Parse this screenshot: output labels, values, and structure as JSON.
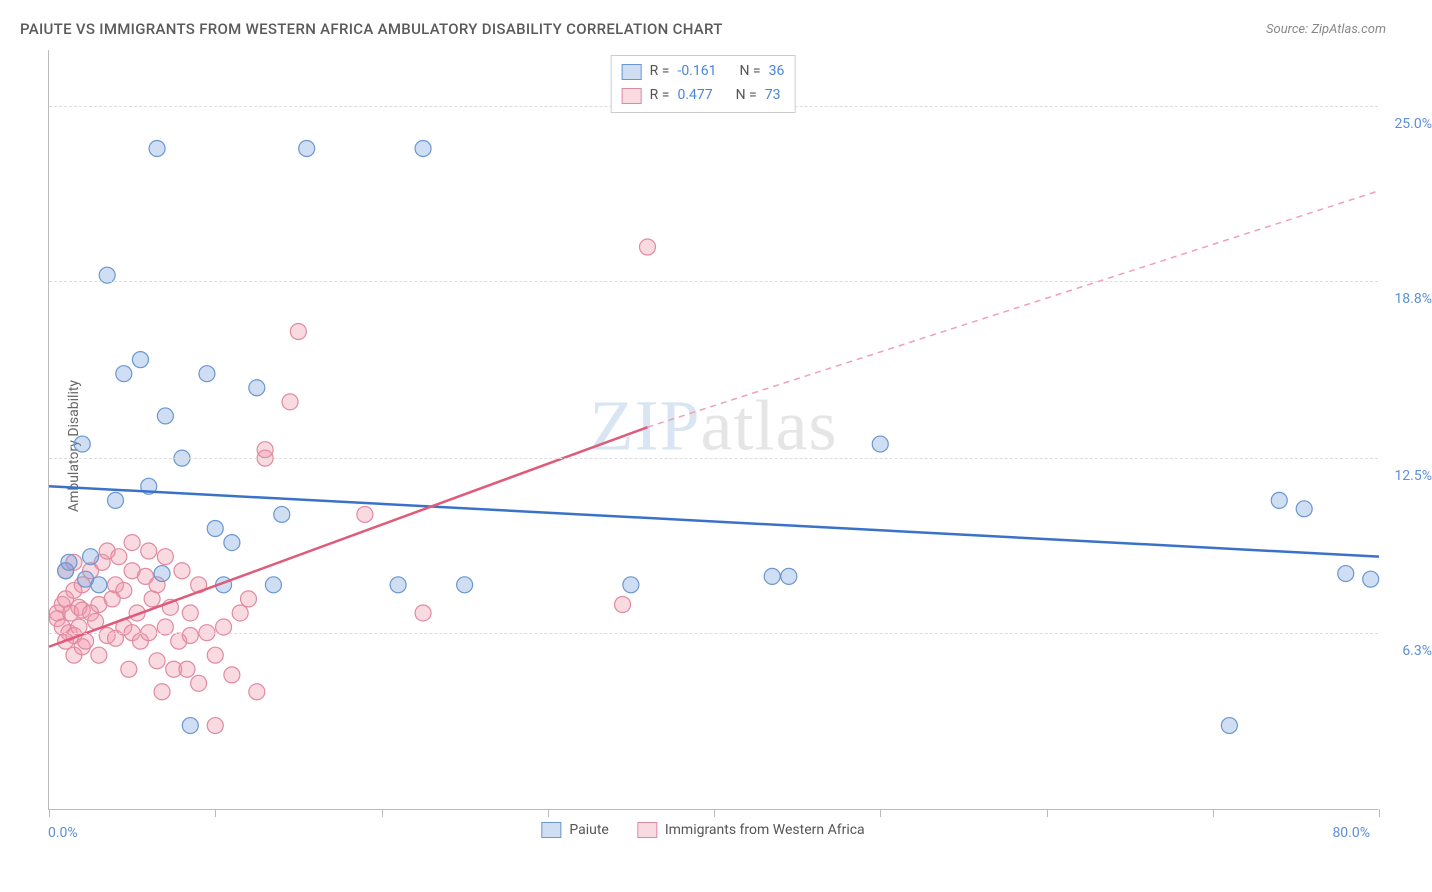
{
  "title": "PAIUTE VS IMMIGRANTS FROM WESTERN AFRICA AMBULATORY DISABILITY CORRELATION CHART",
  "source_prefix": "Source: ",
  "source_name": "ZipAtlas.com",
  "y_axis_label": "Ambulatory Disability",
  "watermark_zip": "ZIP",
  "watermark_atlas": "atlas",
  "chart": {
    "type": "scatter",
    "xlim": [
      0,
      80
    ],
    "ylim": [
      0,
      27
    ],
    "x_ticks": [
      0,
      10,
      20,
      30,
      40,
      50,
      60,
      70,
      80
    ],
    "x_tick_min_label": "0.0%",
    "x_tick_max_label": "80.0%",
    "y_gridlines": [
      6.3,
      12.5,
      18.8,
      25.0
    ],
    "y_tick_labels": [
      "6.3%",
      "12.5%",
      "18.8%",
      "25.0%"
    ],
    "background_color": "#ffffff",
    "grid_color": "#dddddd",
    "axis_color": "#bbbbbb",
    "tick_label_color": "#5b8fd9",
    "series1": {
      "name": "Paiute",
      "color_fill": "rgba(120,160,220,0.35)",
      "color_stroke": "#6a97d2",
      "marker_radius": 8,
      "R": "-0.161",
      "N": "36",
      "trend_line": {
        "x1": 0,
        "y1": 11.5,
        "x2": 80,
        "y2": 9.0,
        "stroke": "#3a72c8",
        "stroke_width": 2.5
      },
      "points": [
        [
          1.0,
          8.5
        ],
        [
          1.2,
          8.8
        ],
        [
          2.0,
          13.0
        ],
        [
          2.5,
          9.0
        ],
        [
          3.5,
          19.0
        ],
        [
          4.0,
          11.0
        ],
        [
          4.5,
          15.5
        ],
        [
          6.0,
          11.5
        ],
        [
          6.5,
          23.5
        ],
        [
          7.0,
          14.0
        ],
        [
          8.0,
          12.5
        ],
        [
          8.5,
          3.0
        ],
        [
          9.5,
          15.5
        ],
        [
          10.0,
          10.0
        ],
        [
          10.5,
          8.0
        ],
        [
          11.0,
          9.5
        ],
        [
          12.5,
          15.0
        ],
        [
          13.5,
          8.0
        ],
        [
          14.0,
          10.5
        ],
        [
          15.5,
          23.5
        ],
        [
          21.0,
          8.0
        ],
        [
          22.5,
          23.5
        ],
        [
          25.0,
          8.0
        ],
        [
          35.0,
          8.0
        ],
        [
          43.5,
          8.3
        ],
        [
          44.5,
          8.3
        ],
        [
          50.0,
          13.0
        ],
        [
          71.0,
          3.0
        ],
        [
          74.0,
          11.0
        ],
        [
          75.5,
          10.7
        ],
        [
          78.0,
          8.4
        ],
        [
          79.5,
          8.2
        ],
        [
          5.5,
          16.0
        ],
        [
          3.0,
          8.0
        ],
        [
          2.2,
          8.2
        ],
        [
          6.8,
          8.4
        ]
      ]
    },
    "series2": {
      "name": "Immigrants from Western Africa",
      "color_fill": "rgba(240,150,170,0.35)",
      "color_stroke": "#e08aa0",
      "marker_radius": 8,
      "R": "0.477",
      "N": "73",
      "trend_line_solid": {
        "x1": 0,
        "y1": 5.8,
        "x2": 36,
        "y2": 13.6,
        "stroke": "#e05a7a",
        "stroke_width": 2.5
      },
      "trend_line_dashed": {
        "x1": 36,
        "y1": 13.6,
        "x2": 80,
        "y2": 22.0,
        "stroke": "#f0a0b5",
        "stroke_width": 1.5,
        "dash": "6,5"
      },
      "points": [
        [
          0.5,
          6.8
        ],
        [
          0.5,
          7.0
        ],
        [
          0.8,
          6.5
        ],
        [
          0.8,
          7.3
        ],
        [
          1.0,
          6.0
        ],
        [
          1.0,
          7.5
        ],
        [
          1.0,
          8.5
        ],
        [
          1.2,
          6.3
        ],
        [
          1.3,
          7.0
        ],
        [
          1.5,
          5.5
        ],
        [
          1.5,
          6.2
        ],
        [
          1.5,
          7.8
        ],
        [
          1.5,
          8.8
        ],
        [
          1.8,
          7.2
        ],
        [
          1.8,
          6.5
        ],
        [
          2.0,
          5.8
        ],
        [
          2.0,
          7.1
        ],
        [
          2.0,
          8.0
        ],
        [
          2.2,
          6.0
        ],
        [
          2.5,
          7.0
        ],
        [
          2.5,
          8.5
        ],
        [
          2.8,
          6.7
        ],
        [
          3.0,
          5.5
        ],
        [
          3.0,
          7.3
        ],
        [
          3.2,
          8.8
        ],
        [
          3.5,
          6.2
        ],
        [
          3.5,
          9.2
        ],
        [
          3.8,
          7.5
        ],
        [
          4.0,
          6.1
        ],
        [
          4.0,
          8.0
        ],
        [
          4.2,
          9.0
        ],
        [
          4.5,
          6.5
        ],
        [
          4.5,
          7.8
        ],
        [
          4.8,
          5.0
        ],
        [
          5.0,
          6.3
        ],
        [
          5.0,
          8.5
        ],
        [
          5.0,
          9.5
        ],
        [
          5.3,
          7.0
        ],
        [
          5.5,
          6.0
        ],
        [
          5.8,
          8.3
        ],
        [
          6.0,
          9.2
        ],
        [
          6.0,
          6.3
        ],
        [
          6.2,
          7.5
        ],
        [
          6.5,
          5.3
        ],
        [
          6.5,
          8.0
        ],
        [
          6.8,
          4.2
        ],
        [
          7.0,
          6.5
        ],
        [
          7.0,
          9.0
        ],
        [
          7.3,
          7.2
        ],
        [
          7.5,
          5.0
        ],
        [
          7.8,
          6.0
        ],
        [
          8.0,
          8.5
        ],
        [
          8.3,
          5.0
        ],
        [
          8.5,
          6.2
        ],
        [
          8.5,
          7.0
        ],
        [
          9.0,
          4.5
        ],
        [
          9.0,
          8.0
        ],
        [
          9.5,
          6.3
        ],
        [
          10.0,
          3.0
        ],
        [
          10.0,
          5.5
        ],
        [
          10.5,
          6.5
        ],
        [
          11.0,
          4.8
        ],
        [
          11.5,
          7.0
        ],
        [
          12.0,
          7.5
        ],
        [
          12.5,
          4.2
        ],
        [
          13.0,
          12.5
        ],
        [
          13.0,
          12.8
        ],
        [
          14.5,
          14.5
        ],
        [
          15.0,
          17.0
        ],
        [
          19.0,
          10.5
        ],
        [
          22.5,
          7.0
        ],
        [
          34.5,
          7.3
        ],
        [
          36.0,
          20.0
        ]
      ]
    }
  },
  "legend_top": {
    "r_label": "R =",
    "n_label": "N ="
  },
  "legend_bottom": {
    "item1": "Paiute",
    "item2": "Immigrants from Western Africa"
  }
}
